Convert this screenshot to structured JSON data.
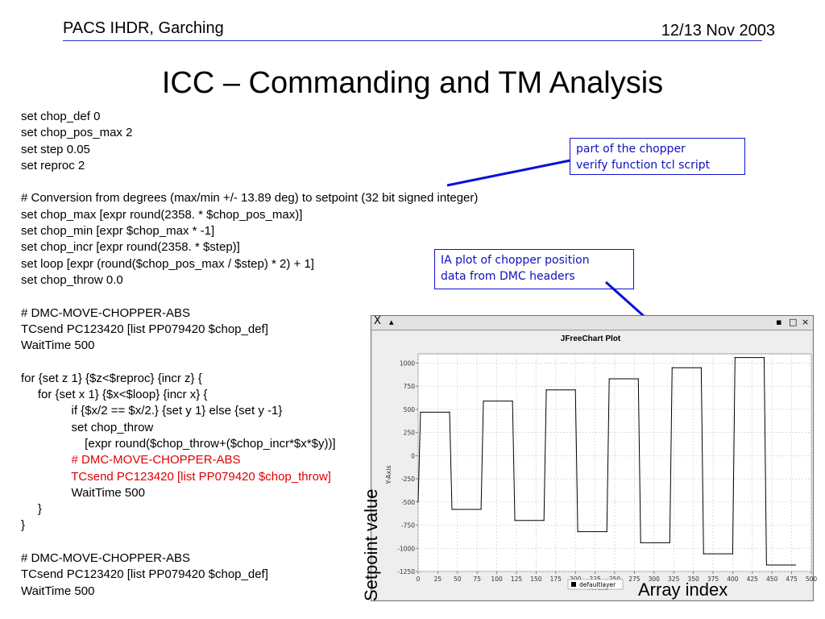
{
  "header": {
    "left": "PACS IHDR, Garching",
    "right": "12/13 Nov 2003"
  },
  "title": "ICC – Commanding and TM Analysis",
  "script_lines": [
    {
      "text": "set chop_def 0",
      "red": false
    },
    {
      "text": "set chop_pos_max 2",
      "red": false
    },
    {
      "text": "set step 0.05",
      "red": false
    },
    {
      "text": "set reproc 2",
      "red": false
    },
    {
      "text": "",
      "red": false
    },
    {
      "text": "# Conversion from degrees (max/min +/- 13.89 deg) to setpoint (32 bit signed integer)",
      "red": false
    },
    {
      "text": "set chop_max [expr round(2358. * $chop_pos_max)]",
      "red": false
    },
    {
      "text": "set chop_min [expr $chop_max * -1]",
      "red": false
    },
    {
      "text": "set chop_incr [expr round(2358. * $step)]",
      "red": false
    },
    {
      "text": "set loop [expr (round($chop_pos_max / $step) * 2) + 1]",
      "red": false
    },
    {
      "text": "set chop_throw 0.0",
      "red": false
    },
    {
      "text": "",
      "red": false
    },
    {
      "text": "# DMC-MOVE-CHOPPER-ABS",
      "red": false
    },
    {
      "text": "TCsend PC123420 [list PP079420 $chop_def]",
      "red": false
    },
    {
      "text": "WaitTime 500",
      "red": false
    },
    {
      "text": "",
      "red": false
    },
    {
      "text": "for {set z 1} {$z<$reproc} {incr z} {",
      "red": false
    },
    {
      "text": "     for {set x 1} {$x<$loop} {incr x} {",
      "red": false
    },
    {
      "text": "               if {$x/2 == $x/2.} {set y 1} else {set y -1}",
      "red": false
    },
    {
      "text": "               set chop_throw",
      "red": false
    },
    {
      "text": "                   [expr round($chop_throw+($chop_incr*$x*$y))]",
      "red": false
    },
    {
      "text": "               # DMC-MOVE-CHOPPER-ABS",
      "red": true
    },
    {
      "text": "               TCsend PC123420 [list PP079420 $chop_throw]",
      "red": true
    },
    {
      "text": "               WaitTime 500",
      "red": false
    },
    {
      "text": "     }",
      "red": false
    },
    {
      "text": "}",
      "red": false
    },
    {
      "text": "",
      "red": false
    },
    {
      "text": "# DMC-MOVE-CHOPPER-ABS",
      "red": false
    },
    {
      "text": "TCsend PC123420 [list PP079420 $chop_def]",
      "red": false
    },
    {
      "text": "WaitTime 500",
      "red": false
    }
  ],
  "callouts": {
    "c1": "part of the chopper\nverify function tcl script",
    "c2": "IA plot of chopper position\ndata from DMC headers"
  },
  "window": {
    "close_glyph": "X",
    "pin_glyph": "▴",
    "minimize_glyph": "▪",
    "maximize_glyph": "□",
    "close_btn_glyph": "×"
  },
  "overlay": {
    "ylabel": "Setpoint value",
    "xlabel": "Array index"
  },
  "colors": {
    "accent_line": "#3030c8",
    "callout_blue": "#1010d0",
    "code_red": "#e00000"
  },
  "chart_data": {
    "type": "line",
    "title": "JFreeChart Plot",
    "xlabel": "X-Axis",
    "ylabel": "Y-Axis",
    "xlim": [
      0,
      500
    ],
    "ylim": [
      -1250,
      1100
    ],
    "xticks": [
      0,
      25,
      50,
      75,
      100,
      125,
      150,
      175,
      200,
      225,
      250,
      275,
      300,
      325,
      350,
      375,
      400,
      425,
      450,
      475,
      500
    ],
    "yticks": [
      -1250,
      -1000,
      -750,
      -500,
      -250,
      0,
      250,
      500,
      750,
      1000
    ],
    "grid": true,
    "legend": "bottom",
    "series": [
      {
        "name": "defaultlayer",
        "color": "#000000",
        "x": [
          0,
          3,
          40,
          43,
          80,
          83,
          120,
          123,
          160,
          163,
          200,
          203,
          240,
          243,
          280,
          283,
          320,
          323,
          360,
          363,
          400,
          403,
          440,
          443,
          480
        ],
        "y": [
          -500,
          470,
          470,
          -580,
          -580,
          590,
          590,
          -700,
          -700,
          710,
          710,
          -820,
          -820,
          830,
          830,
          -940,
          -940,
          950,
          950,
          -1060,
          -1060,
          1060,
          1060,
          -1180,
          -1180
        ]
      }
    ]
  }
}
